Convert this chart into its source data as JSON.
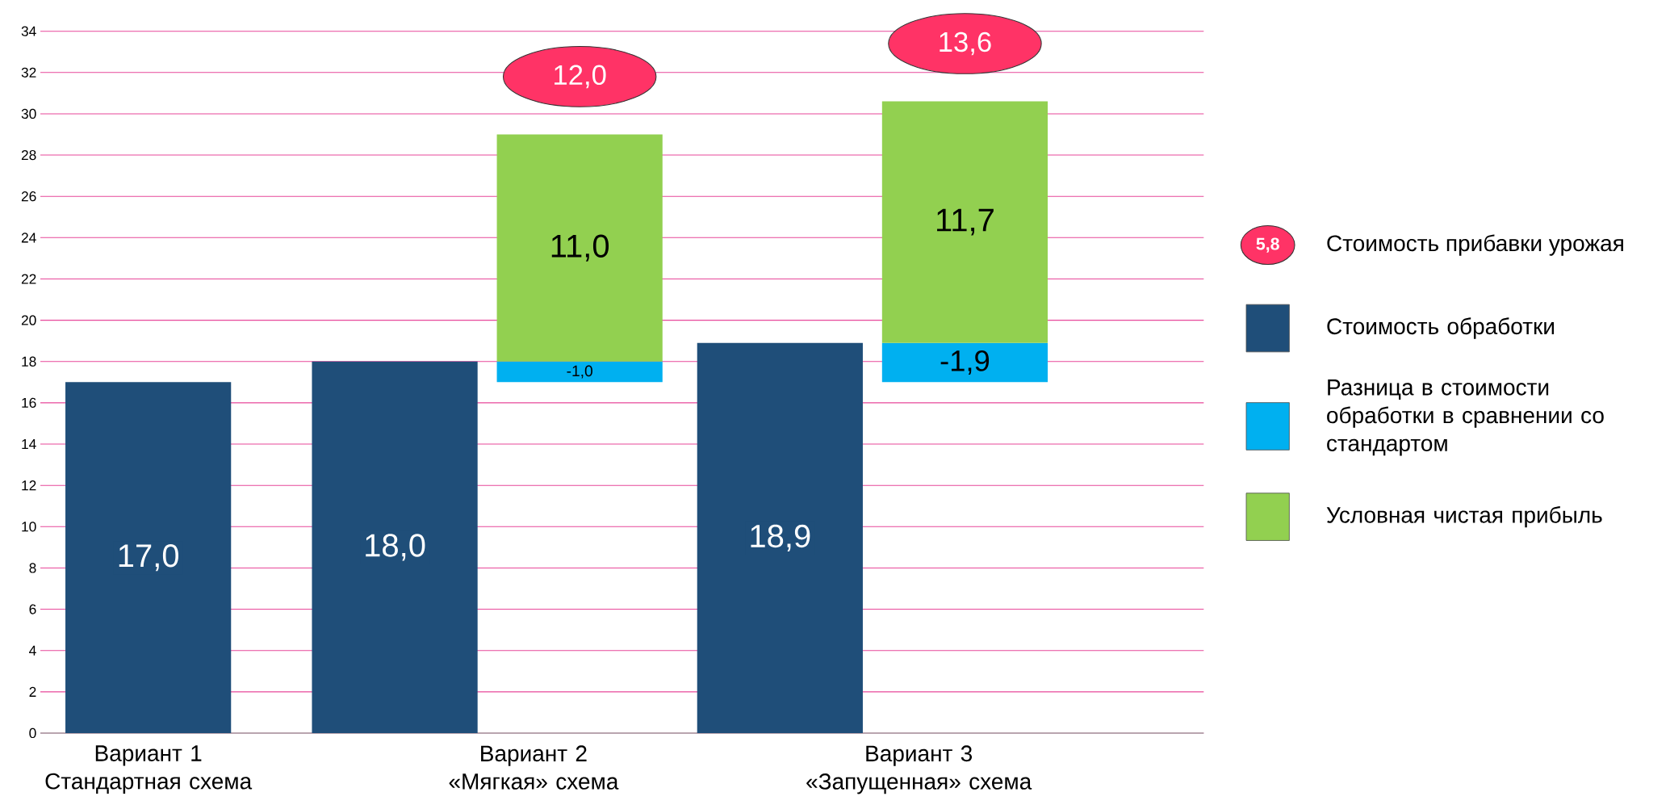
{
  "chart_data": {
    "type": "bar",
    "categories": [
      "Вариант 1 Стандартная схема",
      "Вариант 2 «Мягкая» схема",
      "Вариант 3 «Запущенная» схема"
    ],
    "series": [
      {
        "name": "Стоимость обработки",
        "color": "#1f4e79",
        "values": [
          17.0,
          18.0,
          18.9
        ],
        "value_labels": [
          "17,0",
          "18,0",
          "18,9"
        ]
      },
      {
        "name": "Разница в стоимости обработки в сравнении со стандартом",
        "color": "#00b0f0",
        "values": [
          null,
          -1.0,
          -1.9
        ],
        "base": [
          null,
          18.0,
          18.9
        ],
        "value_labels": [
          null,
          "-1,0",
          "-1,9"
        ]
      },
      {
        "name": "Условная чистая прибыль",
        "color": "#92d050",
        "values": [
          null,
          11.0,
          11.7
        ],
        "base": [
          null,
          18.0,
          18.9
        ],
        "value_labels": [
          null,
          "11,0",
          "11,7"
        ]
      }
    ],
    "annotations": [
      "Стоимость прибавки урожая",
      "5,8",
      "12,0",
      "13,6"
    ],
    "ylim": [
      0,
      34
    ],
    "yticks": [
      0,
      2,
      4,
      6,
      8,
      10,
      12,
      14,
      16,
      18,
      20,
      22,
      24,
      26,
      28,
      30,
      32,
      34
    ],
    "grid": "y",
    "legend": "right"
  }
}
